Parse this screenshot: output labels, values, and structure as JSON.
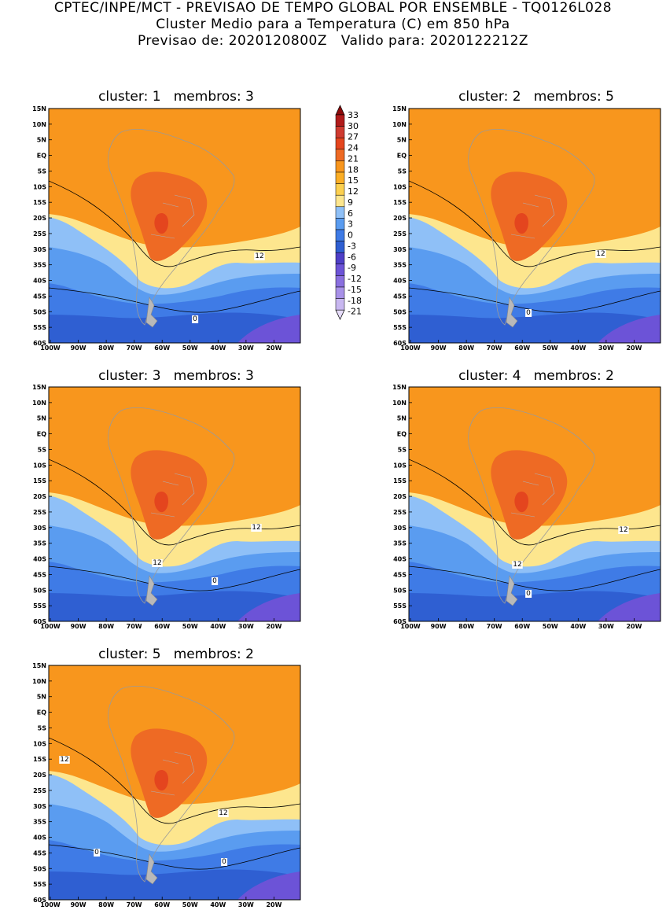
{
  "header": {
    "line1": "CPTEC/INPE/MCT - PREVISAO DE TEMPO GLOBAL POR ENSEMBLE - TQ0126L028",
    "line2": "Cluster Medio para a Temperatura (C) em 850 hPa",
    "line3": "Previsao de: 2020120800Z   Valido para: 2020122212Z"
  },
  "lat_labels": [
    "15N",
    "10N",
    "5N",
    "EQ",
    "5S",
    "10S",
    "15S",
    "20S",
    "25S",
    "30S",
    "35S",
    "40S",
    "45S",
    "50S",
    "55S",
    "60S"
  ],
  "lon_labels": [
    "100W",
    "90W",
    "80W",
    "70W",
    "60W",
    "50W",
    "40W",
    "30W",
    "20W"
  ],
  "colorbar": {
    "labels": [
      "33",
      "30",
      "27",
      "24",
      "21",
      "18",
      "15",
      "12",
      "9",
      "6",
      "3",
      "0",
      "-3",
      "-6",
      "-9",
      "-12",
      "-15",
      "-18",
      "-21"
    ],
    "colors": {
      "c33": "#8c0a0a",
      "c30": "#b11b1b",
      "c27": "#cf3b30",
      "c24": "#e4451e",
      "c21": "#ee6a24",
      "c18": "#f8961d",
      "c15": "#fbae25",
      "c12": "#fcd04f",
      "c9": "#fde68e",
      "c6": "#8fc0f7",
      "c3": "#5a9cf0",
      "c0": "#3f7be6",
      "cm3": "#2f5fd2",
      "cm6": "#4e3fc7",
      "cm9": "#6c53d7",
      "cm12": "#8a6fdf",
      "cm15": "#a891e8",
      "cm18": "#c8b7f0",
      "cm21": "#e6dcfa"
    }
  },
  "panels": [
    {
      "title": "cluster: 1   membros: 3",
      "contour_labels": [
        "12",
        "0"
      ]
    },
    {
      "title": "cluster: 2   membros: 5",
      "contour_labels": [
        "12",
        "0"
      ]
    },
    {
      "title": "cluster: 3   membros: 3",
      "contour_labels": [
        "12",
        "12",
        "0"
      ]
    },
    {
      "title": "cluster: 4   membros: 2",
      "contour_labels": [
        "12",
        "12",
        "0"
      ]
    },
    {
      "title": "cluster: 5   membros: 2",
      "contour_labels": [
        "12",
        "12",
        "0",
        "0"
      ]
    }
  ]
}
